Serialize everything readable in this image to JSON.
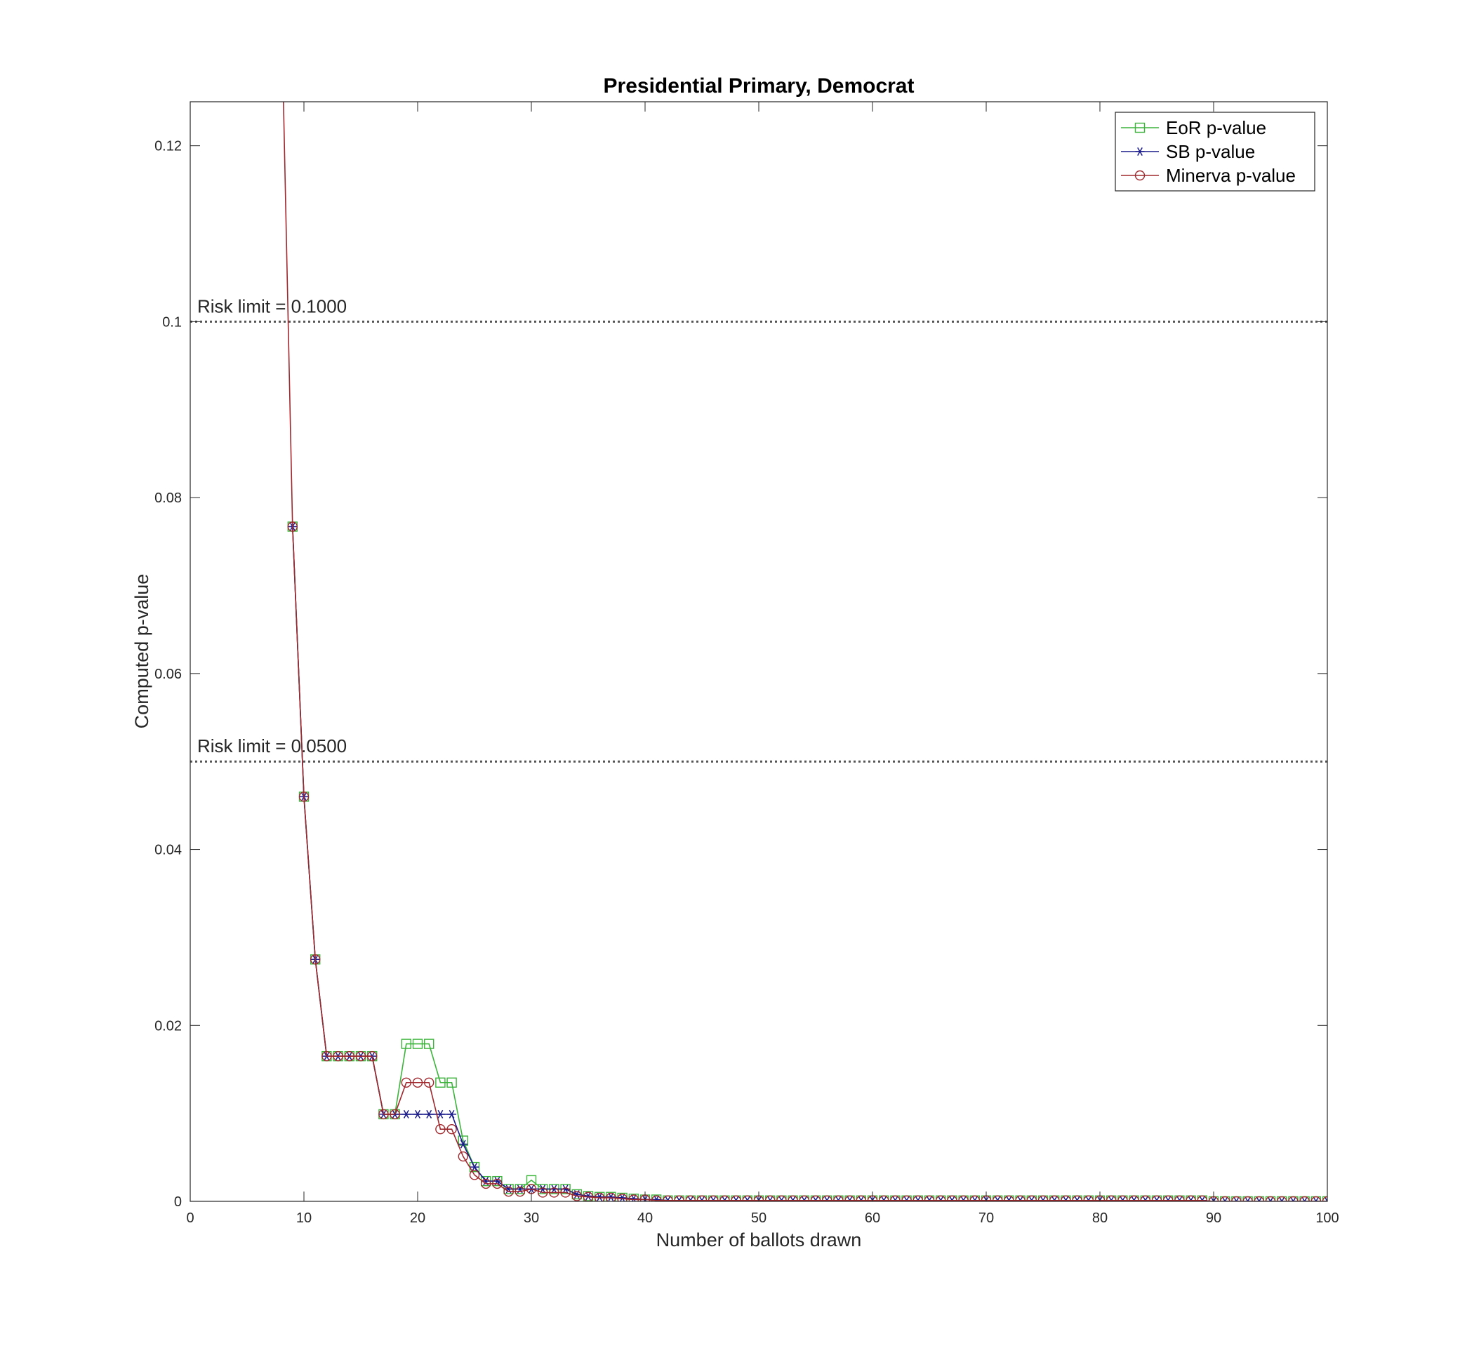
{
  "chart_data": {
    "type": "line",
    "title": "Presidential Primary, Democrat",
    "xlabel": "Number of ballots drawn",
    "ylabel": "Computed p-value",
    "xlim": [
      0,
      100
    ],
    "ylim": [
      0,
      0.125
    ],
    "xticks": [
      0,
      10,
      20,
      30,
      40,
      50,
      60,
      70,
      80,
      90,
      100
    ],
    "xtick_labels": [
      "0",
      "10",
      "20",
      "30",
      "40",
      "50",
      "60",
      "70",
      "80",
      "90",
      "100"
    ],
    "yticks": [
      0,
      0.02,
      0.04,
      0.06,
      0.08,
      0.1,
      0.12
    ],
    "ytick_labels": [
      "0",
      "0.02",
      "0.04",
      "0.06",
      "0.08",
      "0.1",
      "0.12"
    ],
    "grid": false,
    "legend_position": "top-right",
    "risk_limits": [
      {
        "value": 0.1,
        "label": "Risk limit = 0.1000"
      },
      {
        "value": 0.05,
        "label": "Risk limit = 0.0500"
      }
    ],
    "series": [
      {
        "name": "EoR p-value",
        "color": "#3cb43c",
        "marker": "square",
        "x": [
          9,
          10,
          11,
          12,
          13,
          14,
          15,
          16,
          17,
          18,
          19,
          20,
          21,
          22,
          23,
          24,
          25,
          26,
          27,
          28,
          29,
          30,
          31,
          32,
          33,
          34,
          35,
          36,
          37,
          38,
          39,
          40,
          41,
          42,
          43,
          44,
          45,
          46,
          47,
          48,
          49,
          50,
          51,
          52,
          53,
          54,
          55,
          56,
          57,
          58,
          59,
          60,
          61,
          62,
          63,
          64,
          65,
          66,
          67,
          68,
          69,
          70,
          71,
          72,
          73,
          74,
          75,
          76,
          77,
          78,
          79,
          80,
          81,
          82,
          83,
          84,
          85,
          86,
          87,
          88,
          89,
          90,
          91,
          92,
          93,
          94,
          95,
          96,
          97,
          98,
          99,
          100
        ],
        "y": [
          0.0767,
          0.046,
          0.0275,
          0.0165,
          0.0165,
          0.0165,
          0.0165,
          0.0165,
          0.0099,
          0.0099,
          0.0179,
          0.0179,
          0.0179,
          0.0135,
          0.0135,
          0.0069,
          0.0039,
          0.0023,
          0.0023,
          0.0014,
          0.0014,
          0.0024,
          0.0014,
          0.0014,
          0.0014,
          0.0008,
          0.0006,
          0.0005,
          0.0005,
          0.0004,
          0.0003,
          0.0002,
          0.0002,
          0.0001,
          0.0001,
          0.0001,
          0.0001,
          0.0001,
          0.0001,
          0.0001,
          0.0001,
          0.0001,
          0.0001,
          0.0001,
          0.0001,
          0.0001,
          0.0001,
          0.0001,
          0.0001,
          0.0001,
          0.0001,
          0.0001,
          0.0001,
          0.0001,
          0.0001,
          0.0001,
          0.0001,
          0.0001,
          0.0001,
          0.0001,
          0.0001,
          0.0001,
          0.0001,
          0.0001,
          0.0001,
          0.0001,
          0.0001,
          0.0001,
          0.0001,
          0.0001,
          0.0001,
          0.0001,
          0.0001,
          0.0001,
          0.0001,
          0.0001,
          0.0001,
          0.0001,
          0.0001,
          0.0001,
          0.0001,
          0,
          0,
          0,
          0,
          0,
          0,
          0,
          0,
          0,
          0,
          0
        ]
      },
      {
        "name": "SB p-value",
        "color": "#1a1a8c",
        "marker": "asterisk",
        "x": [
          9,
          10,
          11,
          12,
          13,
          14,
          15,
          16,
          17,
          18,
          19,
          20,
          21,
          22,
          23,
          24,
          25,
          26,
          27,
          28,
          29,
          30,
          31,
          32,
          33,
          34,
          35,
          36,
          37,
          38,
          39,
          40,
          41,
          42,
          43,
          44,
          45,
          46,
          47,
          48,
          49,
          50,
          51,
          52,
          53,
          54,
          55,
          56,
          57,
          58,
          59,
          60,
          61,
          62,
          63,
          64,
          65,
          66,
          67,
          68,
          69,
          70,
          71,
          72,
          73,
          74,
          75,
          76,
          77,
          78,
          79,
          80,
          81,
          82,
          83,
          84,
          85,
          86,
          87,
          88,
          89,
          90,
          91,
          92,
          93,
          94,
          95,
          96,
          97,
          98,
          99,
          100
        ],
        "y": [
          0.0767,
          0.046,
          0.0275,
          0.0165,
          0.0165,
          0.0165,
          0.0165,
          0.0165,
          0.0099,
          0.0099,
          0.0099,
          0.0099,
          0.0099,
          0.0099,
          0.0099,
          0.0065,
          0.0039,
          0.0023,
          0.0023,
          0.0014,
          0.0014,
          0.0014,
          0.0014,
          0.0014,
          0.0014,
          0.0008,
          0.0006,
          0.0005,
          0.0005,
          0.0004,
          0.0003,
          0.0002,
          0.0002,
          0.0001,
          0.0001,
          0.0001,
          0.0001,
          0.0001,
          0.0001,
          0.0001,
          0.0001,
          0.0001,
          0.0001,
          0.0001,
          0.0001,
          0.0001,
          0.0001,
          0.0001,
          0.0001,
          0.0001,
          0.0001,
          0.0001,
          0.0001,
          0.0001,
          0.0001,
          0.0001,
          0.0001,
          0.0001,
          0.0001,
          0.0001,
          0.0001,
          0.0001,
          0.0001,
          0.0001,
          0.0001,
          0.0001,
          0.0001,
          0.0001,
          0.0001,
          0.0001,
          0.0001,
          0.0001,
          0.0001,
          0.0001,
          0.0001,
          0.0001,
          0.0001,
          0.0001,
          0.0001,
          0.0001,
          0.0001,
          0,
          0,
          0,
          0,
          0,
          0,
          0,
          0,
          0,
          0,
          0
        ]
      },
      {
        "name": "Minerva p-value",
        "color": "#a0282d",
        "marker": "circle",
        "x": [
          8.2,
          9,
          10,
          11,
          12,
          13,
          14,
          15,
          16,
          17,
          18,
          19,
          20,
          21,
          22,
          23,
          24,
          25,
          26,
          27,
          28,
          29,
          30,
          31,
          32,
          33,
          34,
          35,
          36,
          37,
          38,
          39,
          40,
          41,
          42,
          43,
          44,
          45,
          46,
          47,
          48,
          49,
          50,
          51,
          52,
          53,
          54,
          55,
          56,
          57,
          58,
          59,
          60,
          61,
          62,
          63,
          64,
          65,
          66,
          67,
          68,
          69,
          70,
          71,
          72,
          73,
          74,
          75,
          76,
          77,
          78,
          79,
          80,
          81,
          82,
          83,
          84,
          85,
          86,
          87,
          88,
          89,
          90,
          91,
          92,
          93,
          94,
          95,
          96,
          97,
          98,
          99,
          100
        ],
        "y": [
          0.125,
          0.0767,
          0.046,
          0.0275,
          0.0165,
          0.0165,
          0.0165,
          0.0165,
          0.0165,
          0.0099,
          0.0099,
          0.0135,
          0.0135,
          0.0135,
          0.0082,
          0.0082,
          0.0051,
          0.003,
          0.002,
          0.002,
          0.0011,
          0.0011,
          0.0014,
          0.001,
          0.001,
          0.001,
          0.0006,
          0.0005,
          0.0004,
          0.0004,
          0.0003,
          0.0002,
          0.0002,
          0.0001,
          0.0001,
          0.0001,
          0.0001,
          0.0001,
          0.0001,
          0.0001,
          0.0001,
          0.0001,
          0.0001,
          0.0001,
          0.0001,
          0.0001,
          0.0001,
          0.0001,
          0.0001,
          0.0001,
          0.0001,
          0.0001,
          0.0001,
          0.0001,
          0.0001,
          0.0001,
          0.0001,
          0.0001,
          0.0001,
          0.0001,
          0.0001,
          0.0001,
          0.0001,
          0.0001,
          0.0001,
          0.0001,
          0.0001,
          0.0001,
          0.0001,
          0.0001,
          0.0001,
          0.0001,
          0.0001,
          0.0001,
          0.0001,
          0.0001,
          0.0001,
          0.0001,
          0.0001,
          0.0001,
          0.0001,
          0.0001,
          0,
          0,
          0,
          0,
          0,
          0,
          0,
          0,
          0,
          0,
          0
        ]
      }
    ]
  }
}
